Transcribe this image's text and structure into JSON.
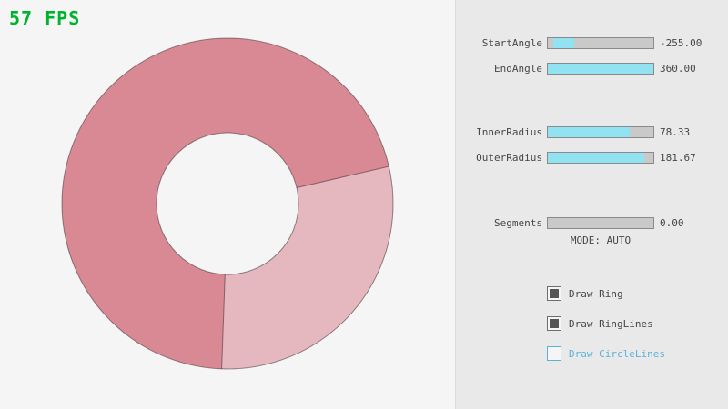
{
  "fps": "57 FPS",
  "panel": {
    "sliders": [
      {
        "label": "StartAngle",
        "value": "-255.00",
        "fill_percent": 20,
        "fill_left_percent": 5
      },
      {
        "label": "EndAngle",
        "value": "360.00",
        "fill_percent": 100,
        "fill_left_percent": 0
      },
      {
        "label": "InnerRadius",
        "value": "78.33",
        "fill_percent": 78,
        "fill_left_percent": 0
      },
      {
        "label": "OuterRadius",
        "value": "181.67",
        "fill_percent": 91,
        "fill_left_percent": 0
      },
      {
        "label": "Segments",
        "value": "0.00",
        "fill_percent": 0,
        "fill_left_percent": 0
      }
    ],
    "mode_label": "MODE: AUTO",
    "checkboxes": [
      {
        "label": "Draw Ring",
        "checked": true
      },
      {
        "label": "Draw RingLines",
        "checked": true
      },
      {
        "label": "Draw CircleLines",
        "checked": false
      }
    ]
  },
  "colors": {
    "bg": "#f5f5f5",
    "panel-bg": "#e9e9e9",
    "panel-border": "#dadada",
    "fps-green": "#00b32e",
    "text": "#474747",
    "ring-dark": "#d98994",
    "ring-light": "#e5b7be",
    "ring-line": "rgba(0,0,0,0.4)",
    "slider-bg": "#c9c9c9",
    "slider-border": "#8a8a8a",
    "slider-fill": "#91e3f2",
    "checkbox-fill": "#555555",
    "checkbox-border": "#6e6e6e",
    "accent-blue": "#5bb2d9"
  }
}
